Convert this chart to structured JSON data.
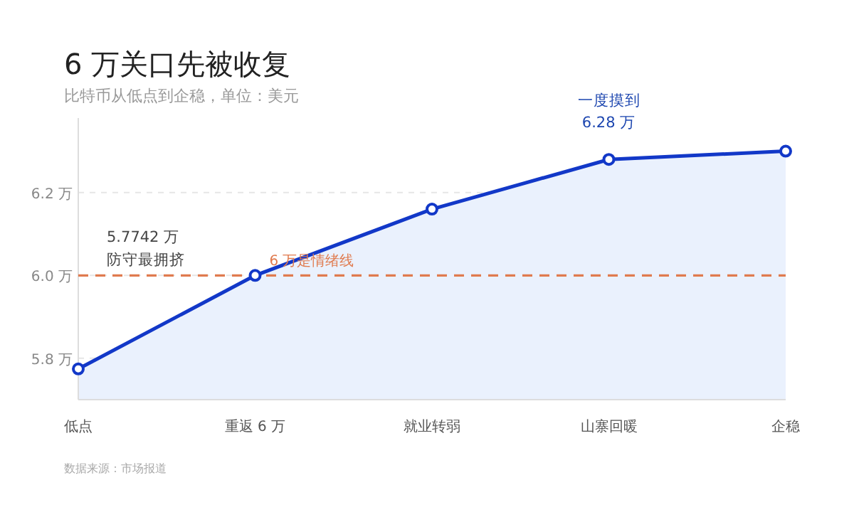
{
  "chart_data": {
    "type": "area",
    "title": "6 万关口先被收复",
    "subtitle": "比特币从低点到企稳，单位：美元",
    "categories": [
      "低点",
      "重返 6 万",
      "就业转弱",
      "山寨回暖",
      "企稳"
    ],
    "series": [
      {
        "color": "#1238c8",
        "values": [
          5.7742,
          6.0,
          6.16,
          6.28,
          6.3
        ]
      }
    ],
    "ylim": [
      5.7,
      6.38
    ],
    "yticks": [
      {
        "value": 5.8,
        "label": "5.8 万"
      },
      {
        "value": 6.0,
        "label": "6.0 万"
      },
      {
        "value": 6.2,
        "label": "6.2 万"
      }
    ],
    "grid": "y",
    "marker": "circle",
    "ref_lines": [
      {
        "axis": "y",
        "value": 6.0,
        "label": "6 万是情绪线",
        "color": "#e07b4f",
        "line_style": "dashed"
      }
    ],
    "annotations": [
      "5.7742 万",
      "防守最拥挤",
      {
        "text": "一度摸到\n6.28 万",
        "x": "山寨回暖",
        "y": 6.28
      },
      "数据来源：市场报道"
    ]
  }
}
